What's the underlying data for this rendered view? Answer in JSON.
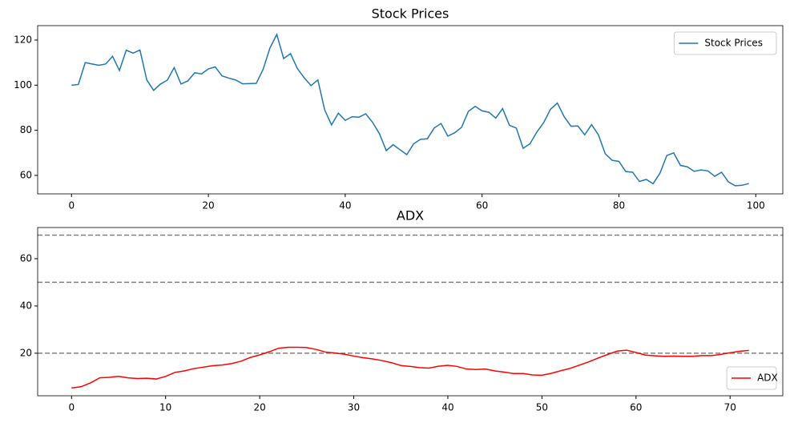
{
  "chart_data": [
    {
      "type": "line",
      "title": "Stock Prices",
      "x": [
        0,
        1,
        2,
        3,
        4,
        5,
        6,
        7,
        8,
        9,
        10,
        11,
        12,
        13,
        14,
        15,
        16,
        17,
        18,
        19,
        20,
        21,
        22,
        23,
        24,
        25,
        26,
        27,
        28,
        29,
        30,
        31,
        32,
        33,
        34,
        35,
        36,
        37,
        38,
        39,
        40,
        41,
        42,
        43,
        44,
        45,
        46,
        47,
        48,
        49,
        50,
        51,
        52,
        53,
        54,
        55,
        56,
        57,
        58,
        59,
        60,
        61,
        62,
        63,
        64,
        65,
        66,
        67,
        68,
        69,
        70,
        71,
        72,
        73,
        74,
        75,
        76,
        77,
        78,
        79,
        80,
        81,
        82,
        83,
        84,
        85,
        86,
        87,
        88,
        89,
        90,
        91,
        92,
        93,
        94,
        95,
        96,
        97,
        98,
        99
      ],
      "series": [
        {
          "name": "Stock Prices",
          "color": "#1f77b4",
          "values": [
            100,
            100.3,
            110,
            109.4,
            108.8,
            109.4,
            112.8,
            106.5,
            115.5,
            114.2,
            115.6,
            102.3,
            97.7,
            100.5,
            102.2,
            107.8,
            100.5,
            101.9,
            105.5,
            105,
            107.2,
            108.1,
            104.1,
            103.1,
            102.3,
            100.6,
            100.7,
            100.8,
            107,
            116.5,
            122.5,
            111.8,
            114,
            107.4,
            103.3,
            99.8,
            102.3,
            89,
            82.4,
            87.6,
            84.4,
            86,
            85.8,
            87.3,
            83.5,
            78.5,
            71,
            73.6,
            71.4,
            69.2,
            74,
            76,
            76.2,
            81,
            83,
            77.4,
            78.9,
            81.3,
            88.4,
            90.6,
            88.6,
            88,
            85.4,
            89.6,
            82.2,
            81,
            72,
            74,
            79.2,
            83.4,
            89.3,
            92.1,
            86,
            81.8,
            81.9,
            78,
            82.5,
            78,
            69.6,
            66.7,
            66.2,
            61.7,
            61.4,
            57.3,
            58.2,
            56.3,
            61,
            68.8,
            70,
            64.4,
            63.8,
            61.8,
            62.4,
            62,
            59.6,
            61.4,
            57.1,
            55.4,
            55.6,
            56.4
          ]
        }
      ],
      "xlim": [
        -4.95,
        103.95
      ],
      "xticks": [
        0,
        20,
        40,
        60,
        80,
        100
      ],
      "ylim": [
        51.8,
        126.4
      ],
      "yticks": [
        60,
        80,
        100,
        120
      ],
      "legend": "upper right"
    },
    {
      "type": "line",
      "title": "ADX",
      "x": [
        0,
        1,
        2,
        3,
        4,
        5,
        6,
        7,
        8,
        9,
        10,
        11,
        12,
        13,
        14,
        15,
        16,
        17,
        18,
        19,
        20,
        21,
        22,
        23,
        24,
        25,
        26,
        27,
        28,
        29,
        30,
        31,
        32,
        33,
        34,
        35,
        36,
        37,
        38,
        39,
        40,
        41,
        42,
        43,
        44,
        45,
        46,
        47,
        48,
        49,
        50,
        51,
        52,
        53,
        54,
        55,
        56,
        57,
        58,
        59,
        60,
        61,
        62,
        63,
        64,
        65,
        66,
        67,
        68,
        69,
        70,
        71,
        72
      ],
      "series": [
        {
          "name": "ADX",
          "color": "#ff0000",
          "values": [
            5.3,
            5.8,
            7.4,
            9.6,
            9.8,
            10.2,
            9.6,
            9.3,
            9.4,
            9.1,
            10.2,
            11.9,
            12.5,
            13.5,
            14.1,
            14.7,
            15,
            15.6,
            16.6,
            18.2,
            19.3,
            20.6,
            22.1,
            22.5,
            22.5,
            22.4,
            21.6,
            20.5,
            20.1,
            19.6,
            18.8,
            18.1,
            17.6,
            16.9,
            16,
            14.8,
            14.4,
            13.9,
            13.7,
            14.5,
            14.9,
            14.4,
            13.3,
            13.1,
            13.3,
            12.5,
            12,
            11.4,
            11.4,
            10.8,
            10.7,
            11.5,
            12.6,
            13.6,
            15,
            16.4,
            18,
            19.5,
            20.9,
            21.3,
            20.3,
            19.2,
            18.9,
            18.7,
            18.8,
            18.7,
            18.7,
            19,
            19,
            19.5,
            20.2,
            20.8,
            21.2
          ]
        }
      ],
      "hlines": [
        20,
        50,
        70
      ],
      "hline_color": "#808080",
      "xlim": [
        -3.6,
        75.6
      ],
      "xticks": [
        0,
        10,
        20,
        30,
        40,
        50,
        60,
        70
      ],
      "ylim": [
        2,
        73.2
      ],
      "yticks": [
        20,
        40,
        60
      ],
      "legend": "lower right"
    }
  ]
}
